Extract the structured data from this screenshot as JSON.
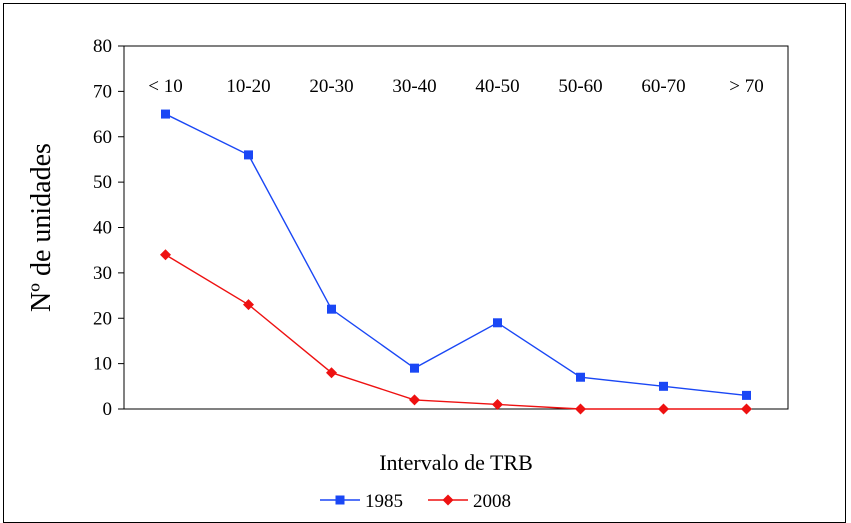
{
  "chart_data": {
    "type": "line",
    "title": "",
    "xlabel": "Intervalo de TRB",
    "ylabel": "Nº de unidades",
    "categories": [
      "< 10",
      "10-20",
      "20-30",
      "30-40",
      "40-50",
      "50-60",
      "60-70",
      "> 70"
    ],
    "ylim": [
      0,
      80
    ],
    "yticks": [
      0,
      10,
      20,
      30,
      40,
      50,
      60,
      70,
      80
    ],
    "category_labels_position": "top",
    "grid": false,
    "legend": "bottom",
    "series": [
      {
        "name": "1985",
        "values": [
          65,
          56,
          22,
          9,
          19,
          7,
          5,
          3
        ],
        "color": "#1a47f5",
        "marker": "square"
      },
      {
        "name": "2008",
        "values": [
          34,
          23,
          8,
          2,
          1,
          0,
          0,
          0
        ],
        "color": "#ee1111",
        "marker": "diamond"
      }
    ]
  }
}
